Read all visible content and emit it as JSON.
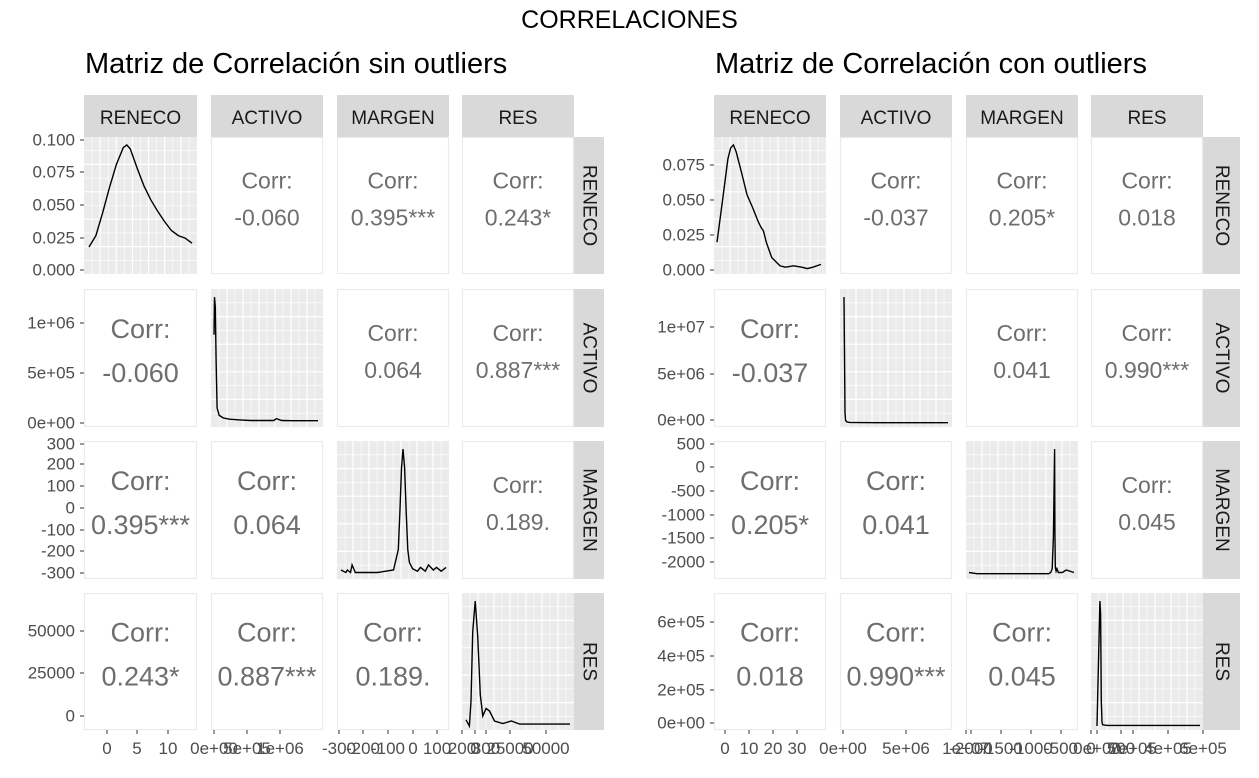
{
  "title": "CORRELACIONES",
  "matrices": [
    {
      "title": "Matriz de Correlación sin outliers",
      "vars": [
        "RENECO",
        "ACTIVO",
        "MARGEN",
        "RES"
      ],
      "corr_label": "Corr:",
      "correlations": {
        "0-1": "-0.060",
        "0-2": "0.395***",
        "0-3": "0.243*",
        "1-2": "0.064",
        "1-3": "0.887***",
        "2-3": "0.189."
      },
      "row_ticks": [
        [
          "0.100",
          "0.075",
          "0.050",
          "0.025",
          "0.000"
        ],
        [
          "1e+06",
          "5e+05",
          "0e+00"
        ],
        [
          "300",
          "200",
          "100",
          "0",
          "-100",
          "-200",
          "-300"
        ],
        [
          "50000",
          "25000",
          "0"
        ]
      ],
      "col_ticks": [
        [
          "0",
          "5",
          "10"
        ],
        [
          "0e+00",
          "5e+05",
          "1e+06"
        ],
        [
          "-300",
          "-200",
          "-100",
          "0",
          "100",
          "200",
          "300"
        ],
        [
          "0",
          "25000",
          "50000"
        ]
      ]
    },
    {
      "title": "Matriz de Correlación con outliers",
      "vars": [
        "RENECO",
        "ACTIVO",
        "MARGEN",
        "RES"
      ],
      "corr_label": "Corr:",
      "correlations": {
        "0-1": "-0.037",
        "0-2": "0.205*",
        "0-3": "0.018",
        "1-2": "0.041",
        "1-3": "0.990***",
        "2-3": "0.045"
      },
      "row_ticks": [
        [
          "0.075",
          "0.050",
          "0.025",
          "0.000"
        ],
        [
          "1e+07",
          "5e+06",
          "0e+00"
        ],
        [
          "500",
          "0",
          "-500",
          "-1000",
          "-1500",
          "-2000"
        ],
        [
          "6e+05",
          "4e+05",
          "2e+05",
          "0e+00"
        ]
      ],
      "col_ticks": [
        [
          "0",
          "10",
          "20",
          "30"
        ],
        [
          "0e+00",
          "5e+06",
          "1e+07"
        ],
        [
          "-2000",
          "-1500",
          "-1000",
          "-500",
          "0",
          "500"
        ],
        [
          "0e+00",
          "2e+05",
          "4e+05",
          "6e+05"
        ]
      ]
    }
  ],
  "chart_data": [
    {
      "type": "scatterplot-matrix",
      "title": "Matriz de Correlación sin outliers",
      "variables": [
        "RENECO",
        "ACTIVO",
        "MARGEN",
        "RES"
      ],
      "diagonal": "density",
      "correlations": [
        {
          "x": "RENECO",
          "y": "ACTIVO",
          "value": "-0.060"
        },
        {
          "x": "RENECO",
          "y": "MARGEN",
          "value": "0.395***"
        },
        {
          "x": "RENECO",
          "y": "RES",
          "value": "0.243*"
        },
        {
          "x": "ACTIVO",
          "y": "MARGEN",
          "value": "0.064"
        },
        {
          "x": "ACTIVO",
          "y": "RES",
          "value": "0.887***"
        },
        {
          "x": "MARGEN",
          "y": "RES",
          "value": "0.189."
        }
      ],
      "densities": [
        {
          "var": "RENECO",
          "xlim": [
            -2,
            13
          ],
          "ylim": [
            0,
            0.1
          ],
          "x": [
            -2,
            -1,
            0,
            1,
            2,
            3,
            3.5,
            4,
            5,
            6,
            7,
            8,
            9,
            10,
            11,
            12,
            13
          ],
          "y": [
            0.018,
            0.027,
            0.045,
            0.065,
            0.083,
            0.096,
            0.098,
            0.095,
            0.08,
            0.066,
            0.055,
            0.046,
            0.038,
            0.031,
            0.027,
            0.025,
            0.021
          ]
        },
        {
          "var": "ACTIVO",
          "xlim": [
            0,
            2000000
          ],
          "x": [
            0,
            10000,
            25000,
            40000,
            60000,
            100000,
            180000,
            300000,
            500000,
            700000,
            900000,
            1150000,
            1200000,
            1300000,
            1500000,
            1800000,
            2000000
          ],
          "y": [
            0.7,
            1.0,
            0.92,
            0.5,
            0.12,
            0.06,
            0.04,
            0.03,
            0.025,
            0.02,
            0.02,
            0.02,
            0.035,
            0.02,
            0.018,
            0.018,
            0.018
          ]
        },
        {
          "var": "MARGEN",
          "xlim": [
            -330,
            330
          ],
          "x": [
            -330,
            -300,
            -290,
            -270,
            -260,
            -240,
            -200,
            -100,
            0,
            30,
            40,
            50,
            60,
            70,
            80,
            90,
            100,
            120,
            150,
            170,
            200,
            220,
            250,
            270,
            300,
            330
          ],
          "y": [
            0.04,
            0.02,
            0.04,
            0.02,
            0.08,
            0.02,
            0.02,
            0.02,
            0.04,
            0.2,
            0.5,
            0.85,
            1.0,
            0.85,
            0.5,
            0.2,
            0.1,
            0.05,
            0.03,
            0.06,
            0.03,
            0.08,
            0.04,
            0.06,
            0.03,
            0.06
          ]
        },
        {
          "var": "RES",
          "xlim": [
            -2000,
            60000
          ],
          "x": [
            -2000,
            0,
            1000,
            2000,
            3500,
            5000,
            6500,
            8000,
            10000,
            12000,
            15000,
            20000,
            25000,
            30000,
            40000,
            50000,
            60000
          ],
          "y": [
            0.05,
            0.0,
            0.2,
            0.75,
            1.0,
            0.72,
            0.25,
            0.08,
            0.14,
            0.12,
            0.04,
            0.02,
            0.04,
            0.015,
            0.015,
            0.015,
            0.015
          ]
        }
      ]
    },
    {
      "type": "scatterplot-matrix",
      "title": "Matriz de Correlación con outliers",
      "variables": [
        "RENECO",
        "ACTIVO",
        "MARGEN",
        "RES"
      ],
      "diagonal": "density",
      "correlations": [
        {
          "x": "RENECO",
          "y": "ACTIVO",
          "value": "-0.037"
        },
        {
          "x": "RENECO",
          "y": "MARGEN",
          "value": "0.205*"
        },
        {
          "x": "RENECO",
          "y": "RES",
          "value": "0.018"
        },
        {
          "x": "ACTIVO",
          "y": "MARGEN",
          "value": "0.041"
        },
        {
          "x": "ACTIVO",
          "y": "RES",
          "value": "0.990***"
        },
        {
          "x": "MARGEN",
          "y": "RES",
          "value": "0.045"
        }
      ],
      "densities": [
        {
          "var": "RENECO",
          "xlim": [
            -3,
            35
          ],
          "ylim": [
            0,
            0.09
          ],
          "x": [
            -3,
            -1,
            1,
            2,
            3,
            4,
            6,
            8,
            10,
            11,
            12,
            13,
            14,
            15,
            17,
            20,
            22,
            25,
            28,
            30,
            32,
            35
          ],
          "y": [
            0.02,
            0.05,
            0.08,
            0.088,
            0.09,
            0.085,
            0.07,
            0.054,
            0.045,
            0.04,
            0.035,
            0.031,
            0.028,
            0.02,
            0.009,
            0.003,
            0.002,
            0.003,
            0.002,
            0.001,
            0.002,
            0.004
          ]
        },
        {
          "var": "ACTIVO",
          "xlim": [
            0,
            20000000
          ],
          "x": [
            0,
            100000,
            200000,
            300000,
            500000,
            1000000,
            3000000,
            6000000,
            10000000,
            15000000,
            20000000
          ],
          "y": [
            1.0,
            0.55,
            0.08,
            0.02,
            0.01,
            0.005,
            0.003,
            0.002,
            0.002,
            0.002,
            0.002
          ]
        },
        {
          "var": "MARGEN",
          "xlim": [
            -2200,
            500
          ],
          "x": [
            -2200,
            -2000,
            -1500,
            -1000,
            -500,
            -150,
            -100,
            -60,
            -30,
            0,
            10,
            20,
            40,
            60,
            100,
            200,
            300,
            500
          ],
          "y": [
            0.02,
            0.01,
            0.01,
            0.01,
            0.01,
            0.01,
            0.02,
            0.05,
            0.3,
            1.0,
            0.35,
            0.06,
            0.03,
            0.05,
            0.02,
            0.02,
            0.04,
            0.02
          ]
        },
        {
          "var": "RES",
          "xlim": [
            -20000,
            700000
          ],
          "x": [
            -20000,
            0,
            5000,
            10000,
            15000,
            20000,
            50000,
            100000,
            200000,
            300000,
            400000,
            500000,
            600000,
            700000
          ],
          "y": [
            0.0,
            1.0,
            0.9,
            0.2,
            0.03,
            0.01,
            0.005,
            0.005,
            0.005,
            0.005,
            0.005,
            0.005,
            0.005,
            0.005
          ]
        }
      ]
    }
  ]
}
